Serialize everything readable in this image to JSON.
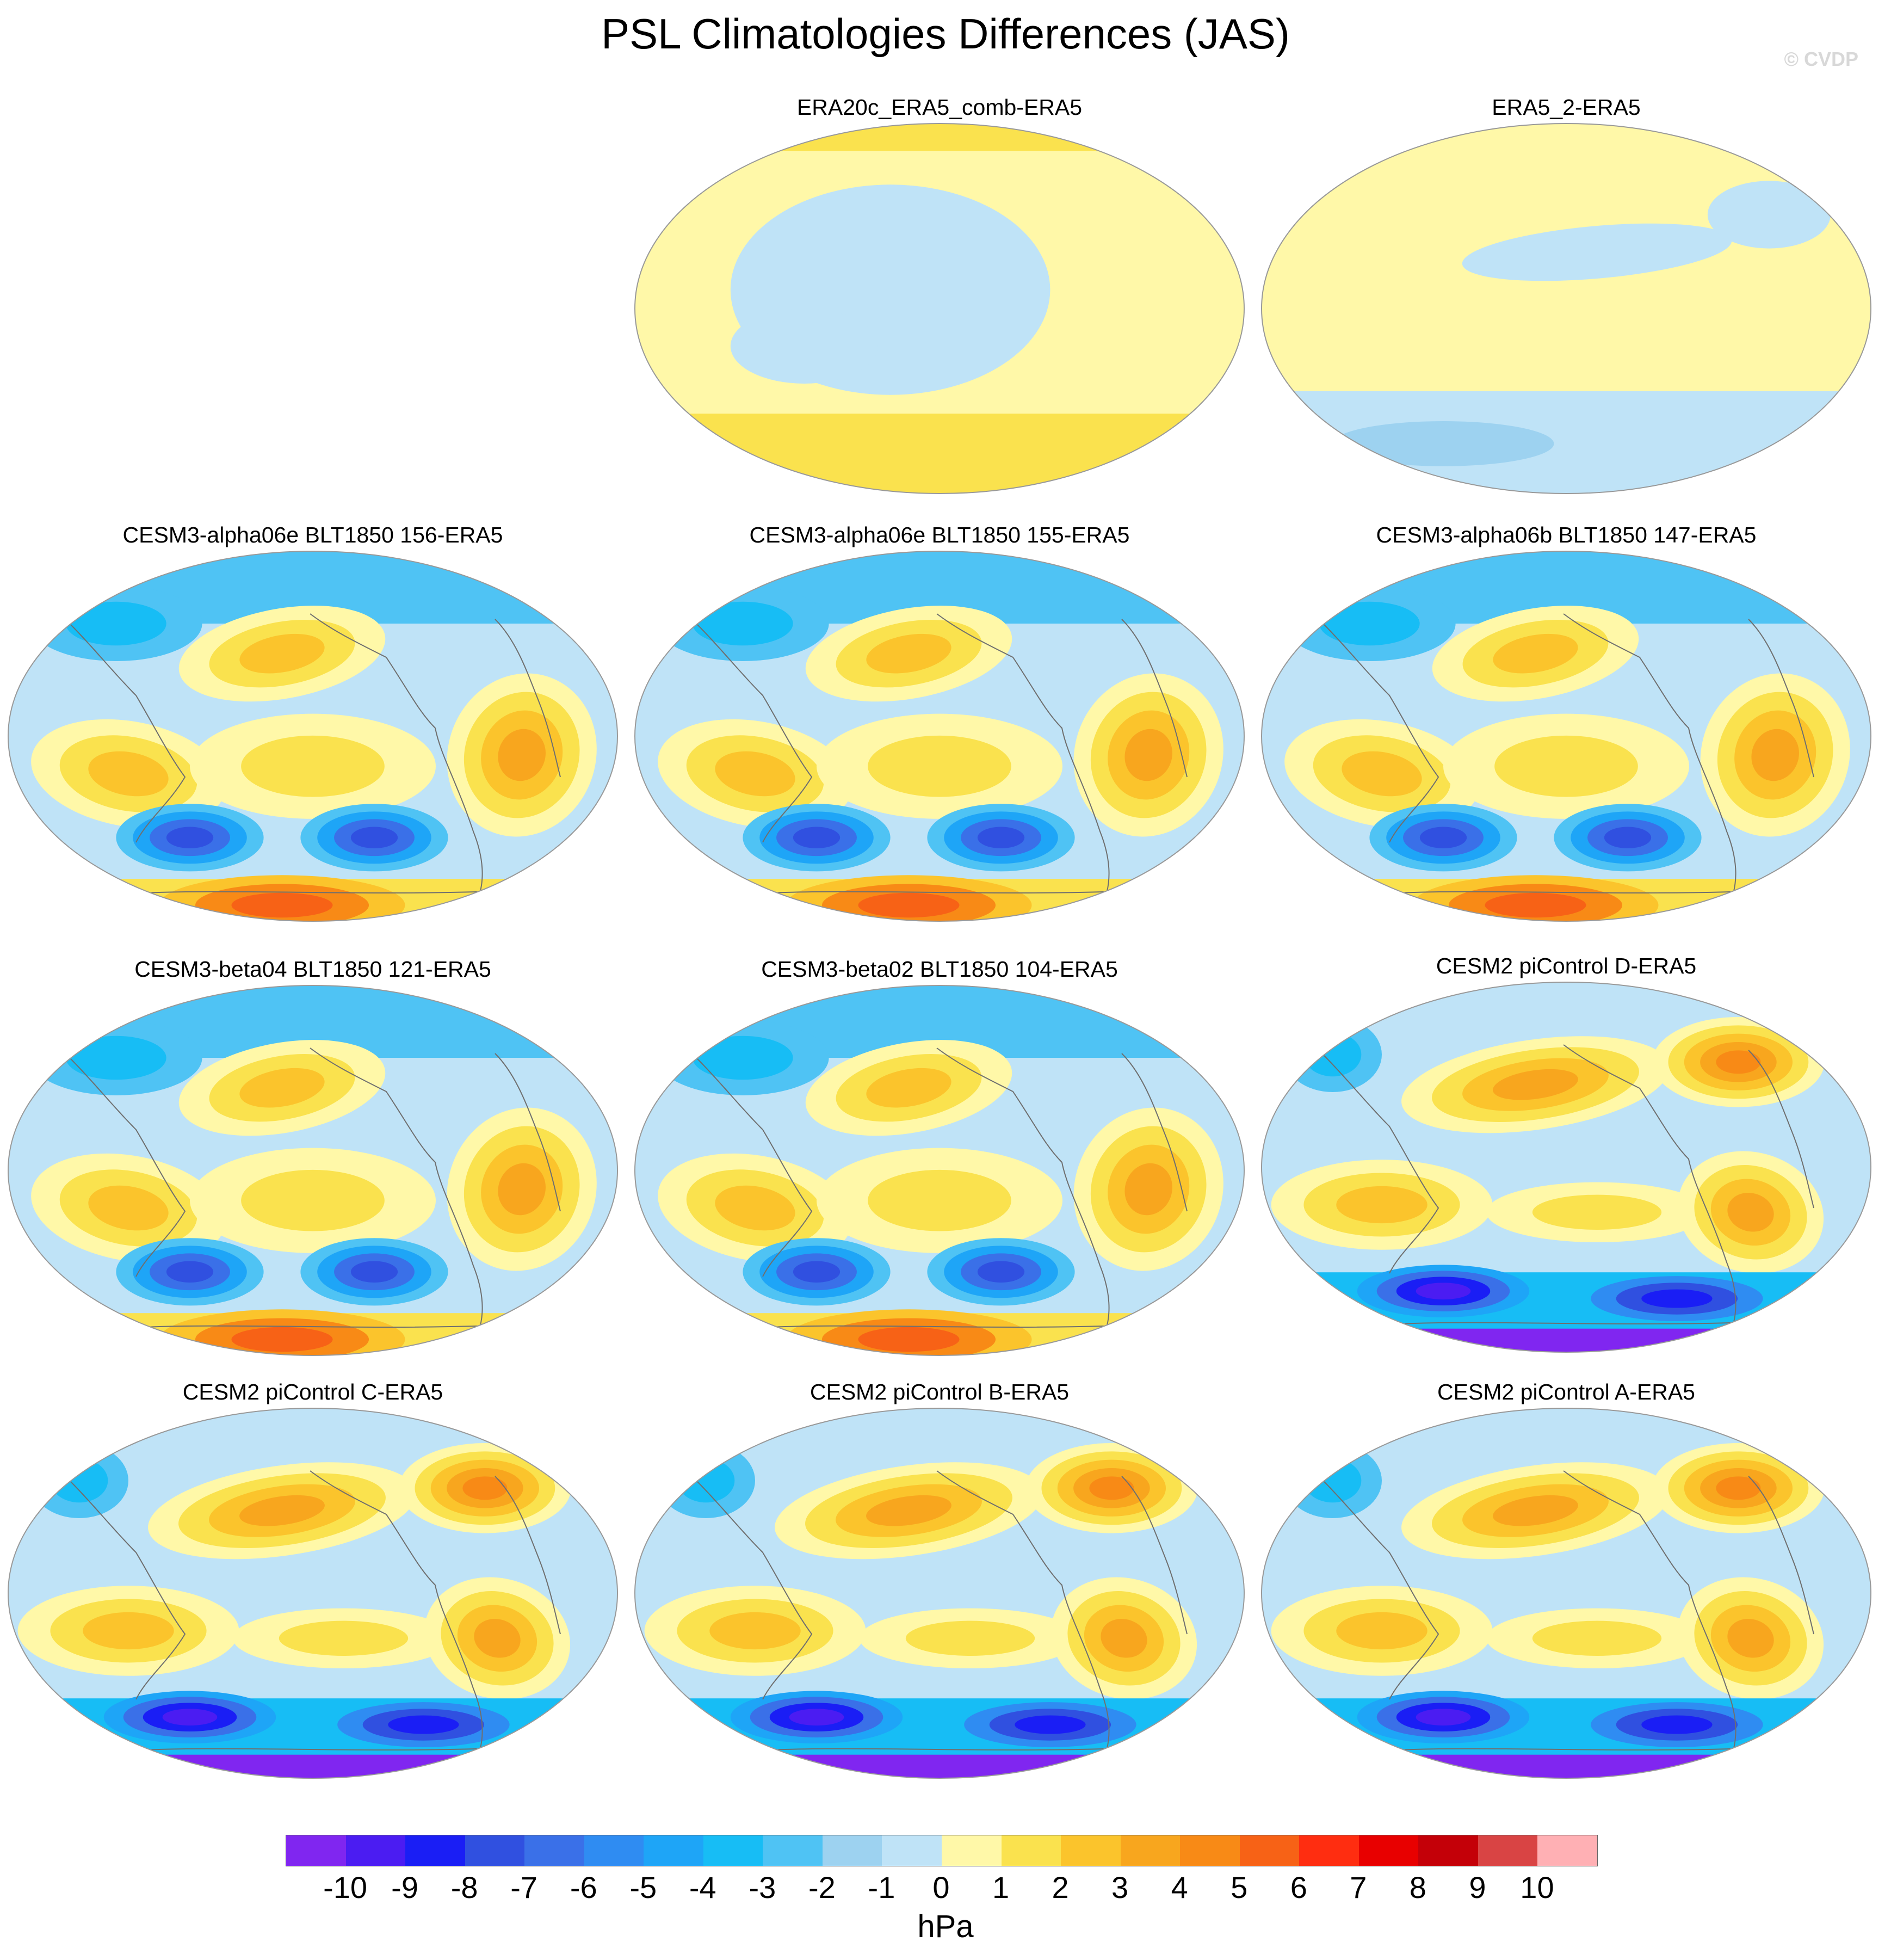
{
  "title": "PSL Climatologies Differences (JAS)",
  "credit": "© CVDP",
  "panels": [
    {
      "title": "ERA20c_ERA5_comb-ERA5",
      "pattern": "weak-1"
    },
    {
      "title": "ERA5_2-ERA5",
      "pattern": "weak-2"
    },
    {
      "title": "CESM3-alpha06e BLT1850 156-ERA5",
      "pattern": "cesm3"
    },
    {
      "title": "CESM3-alpha06e BLT1850 155-ERA5",
      "pattern": "cesm3"
    },
    {
      "title": "CESM3-alpha06b BLT1850 147-ERA5",
      "pattern": "cesm3"
    },
    {
      "title": "CESM3-beta04 BLT1850 121-ERA5",
      "pattern": "cesm3"
    },
    {
      "title": "CESM3-beta02 BLT1850 104-ERA5",
      "pattern": "cesm3"
    },
    {
      "title": "CESM2 piControl D-ERA5",
      "pattern": "cesm2"
    },
    {
      "title": "CESM2 piControl C-ERA5",
      "pattern": "cesm2"
    },
    {
      "title": "CESM2 piControl B-ERA5",
      "pattern": "cesm2"
    },
    {
      "title": "CESM2 piControl A-ERA5",
      "pattern": "cesm2"
    }
  ],
  "colorbar": {
    "colors": [
      "#8026f0",
      "#4b1cf2",
      "#1a1ef5",
      "#3050e0",
      "#3a70e8",
      "#2f8cf2",
      "#1ea5f7",
      "#17bdf5",
      "#4fc3f4",
      "#9dd2f0",
      "#bfe3f7",
      "#fff8a8",
      "#fae24e",
      "#fbc42c",
      "#f8a61e",
      "#f88a16",
      "#f76216",
      "#ff2d10",
      "#e80000",
      "#c40008",
      "#d94444",
      "#ffb0b4"
    ],
    "tick_labels": [
      "-10",
      "-9",
      "-8",
      "-7",
      "-6",
      "-5",
      "-4",
      "-3",
      "-2",
      "-1",
      "0",
      "1",
      "2",
      "3",
      "4",
      "5",
      "6",
      "7",
      "8",
      "9",
      "10"
    ],
    "units": "hPa"
  }
}
